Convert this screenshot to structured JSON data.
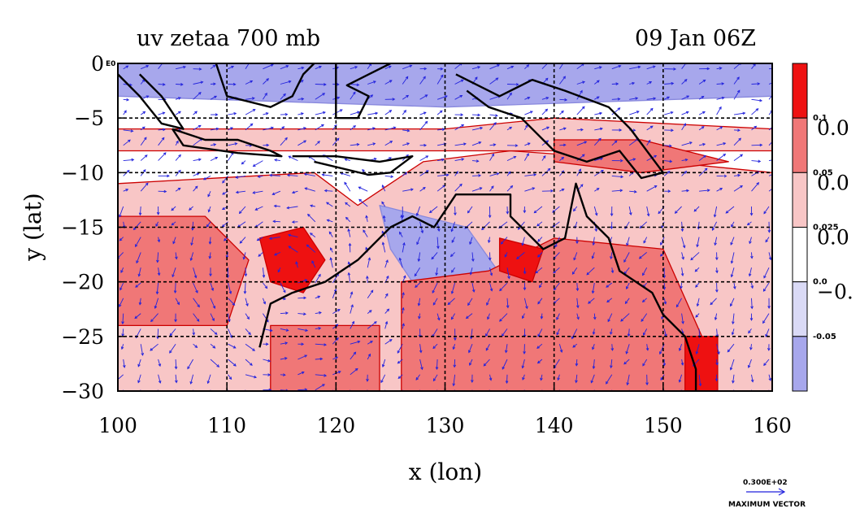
{
  "chart_data": {
    "type": "heatmap",
    "title_left": "uv zetaa 700 mb",
    "title_right": "09 Jan 06Z",
    "xlabel": "x (lon)",
    "ylabel": "y (lat)",
    "xlim": [
      100,
      160
    ],
    "ylim": [
      -30,
      0
    ],
    "x_ticks": [
      100,
      110,
      120,
      130,
      140,
      150,
      160
    ],
    "x_tick_labels": [
      "100",
      "110",
      "120",
      "130",
      "140",
      "150",
      "160"
    ],
    "y_ticks": [
      0,
      -5,
      -10,
      -15,
      -20,
      -25,
      -30
    ],
    "y_tick_labels": [
      "0",
      "−5",
      "−10",
      "−15",
      "−20",
      "−25",
      "−30"
    ],
    "grid_lon": [
      110,
      120,
      130,
      140,
      150
    ],
    "grid_lat": [
      -5,
      -10,
      -15,
      -20,
      -25
    ],
    "corner_label": "E0",
    "colorbar": {
      "levels": [
        0.1,
        0.05,
        0.025,
        0.0,
        -0.05
      ],
      "level_labels_small": [
        "0.1",
        "0.05",
        "0.025",
        "0.0",
        "-0.05"
      ],
      "level_labels_big": [
        "0.0",
        "0.0",
        "0.0",
        "−0."
      ],
      "colors": [
        "#ee1111",
        "#f07777",
        "#f8c6c6",
        "#ffffff",
        "#dadaf6",
        "#a7a7ec"
      ]
    },
    "fields": [
      {
        "name": "positive-anomaly-region",
        "level": 0.025,
        "polygon": [
          [
            100,
            -11
          ],
          [
            118,
            -10
          ],
          [
            122,
            -13
          ],
          [
            128,
            -9
          ],
          [
            136,
            -8
          ],
          [
            150,
            -9
          ],
          [
            160,
            -10
          ],
          [
            160,
            -30
          ],
          [
            100,
            -30
          ]
        ]
      },
      {
        "name": "positive-anomaly-region",
        "level": 0.025,
        "polygon": [
          [
            100,
            -6
          ],
          [
            130,
            -6
          ],
          [
            140,
            -5
          ],
          [
            160,
            -6
          ],
          [
            160,
            -8
          ],
          [
            100,
            -8
          ]
        ]
      },
      {
        "name": "negative-anomaly-region",
        "level": -0.05,
        "polygon": [
          [
            100,
            0
          ],
          [
            160,
            0
          ],
          [
            160,
            -3
          ],
          [
            130,
            -4
          ],
          [
            100,
            -3
          ]
        ]
      },
      {
        "name": "negative-anomaly-region",
        "level": -0.05,
        "polygon": [
          [
            124,
            -13
          ],
          [
            132,
            -15
          ],
          [
            137,
            -22
          ],
          [
            134,
            -29
          ],
          [
            129,
            -23
          ],
          [
            125,
            -17
          ]
        ]
      },
      {
        "name": "positive-anomaly-region",
        "level": 0.05,
        "polygon": [
          [
            100,
            -14
          ],
          [
            108,
            -14
          ],
          [
            112,
            -18
          ],
          [
            110,
            -24
          ],
          [
            100,
            -24
          ]
        ]
      },
      {
        "name": "positive-anomaly-region",
        "level": 0.05,
        "polygon": [
          [
            126,
            -20
          ],
          [
            134,
            -19
          ],
          [
            140,
            -16
          ],
          [
            150,
            -17
          ],
          [
            154,
            -26
          ],
          [
            152,
            -30
          ],
          [
            126,
            -30
          ]
        ]
      },
      {
        "name": "positive-anomaly-region",
        "level": 0.05,
        "polygon": [
          [
            114,
            -24
          ],
          [
            124,
            -24
          ],
          [
            124,
            -30
          ],
          [
            114,
            -30
          ]
        ]
      },
      {
        "name": "positive-anomaly-region",
        "level": 0.05,
        "polygon": [
          [
            140,
            -7
          ],
          [
            148,
            -7
          ],
          [
            156,
            -9
          ],
          [
            148,
            -10
          ],
          [
            140,
            -9
          ]
        ]
      },
      {
        "name": "positive-anomaly-region",
        "level": 0.1,
        "polygon": [
          [
            113,
            -16
          ],
          [
            117,
            -15
          ],
          [
            119,
            -18
          ],
          [
            117,
            -21
          ],
          [
            114,
            -20
          ]
        ]
      },
      {
        "name": "positive-anomaly-region",
        "level": 0.1,
        "polygon": [
          [
            152,
            -25
          ],
          [
            155,
            -25
          ],
          [
            155,
            -30
          ],
          [
            152,
            -30
          ]
        ]
      },
      {
        "name": "positive-anomaly-region",
        "level": 0.1,
        "polygon": [
          [
            135,
            -16
          ],
          [
            139,
            -17
          ],
          [
            138,
            -20
          ],
          [
            135,
            -19
          ]
        ]
      }
    ],
    "coastlines": [
      {
        "name": "australia-coastline",
        "points": [
          [
            113,
            -26
          ],
          [
            114,
            -22
          ],
          [
            116,
            -21
          ],
          [
            119,
            -20
          ],
          [
            122,
            -18
          ],
          [
            125,
            -15
          ],
          [
            127,
            -14
          ],
          [
            129,
            -15
          ],
          [
            131,
            -12
          ],
          [
            133,
            -12
          ],
          [
            136,
            -12
          ],
          [
            136,
            -14
          ],
          [
            139,
            -17
          ],
          [
            141,
            -16
          ],
          [
            142,
            -11
          ],
          [
            143,
            -14
          ],
          [
            145,
            -16
          ],
          [
            146,
            -19
          ],
          [
            149,
            -21
          ],
          [
            150,
            -23
          ],
          [
            152,
            -25
          ],
          [
            153,
            -28
          ],
          [
            153,
            -30
          ]
        ]
      },
      {
        "name": "java-coastline",
        "points": [
          [
            105,
            -6
          ],
          [
            108,
            -7
          ],
          [
            111,
            -7
          ],
          [
            114,
            -8
          ],
          [
            115,
            -8.5
          ],
          [
            111,
            -8.2
          ],
          [
            106,
            -7.5
          ],
          [
            105,
            -6
          ]
        ]
      },
      {
        "name": "nusa-tenggara-coastline",
        "points": [
          [
            116,
            -8.5
          ],
          [
            120,
            -8.5
          ],
          [
            124,
            -9
          ],
          [
            127,
            -8.5
          ],
          [
            125,
            -10
          ],
          [
            123,
            -10.2
          ],
          [
            118,
            -9
          ]
        ]
      },
      {
        "name": "new-guinea-coastline",
        "points": [
          [
            131,
            -1
          ],
          [
            135,
            -3
          ],
          [
            138,
            -1.5
          ],
          [
            141,
            -2.5
          ],
          [
            145,
            -4
          ],
          [
            147,
            -6
          ],
          [
            150,
            -10
          ],
          [
            148,
            -10.5
          ],
          [
            146,
            -8
          ],
          [
            143,
            -9
          ],
          [
            140,
            -8
          ],
          [
            137,
            -5
          ],
          [
            134,
            -4
          ],
          [
            132,
            -2.5
          ]
        ]
      },
      {
        "name": "borneo-coastline",
        "points": [
          [
            109,
            0
          ],
          [
            110,
            -3
          ],
          [
            114,
            -4
          ],
          [
            116,
            -3
          ],
          [
            117,
            -1
          ],
          [
            118,
            0
          ]
        ]
      },
      {
        "name": "sulawesi-coastline",
        "points": [
          [
            120,
            0
          ],
          [
            120,
            -5
          ],
          [
            122,
            -5
          ],
          [
            123,
            -3
          ],
          [
            121,
            -2
          ],
          [
            123,
            -1
          ],
          [
            125,
            0
          ]
        ]
      },
      {
        "name": "sumatra-coastline",
        "points": [
          [
            100,
            -1
          ],
          [
            102,
            -3
          ],
          [
            104,
            -5.5
          ],
          [
            106,
            -6
          ],
          [
            104,
            -3
          ],
          [
            102,
            -1
          ]
        ]
      }
    ],
    "vector_scale_label": "0.300E+02",
    "vector_caption": "MAXIMUM VECTOR"
  },
  "colors": {
    "grid": "#000000",
    "contour": "#cc0000",
    "contour_neg": "#8888dd",
    "vectors": "#2222dd",
    "coast": "#000000"
  }
}
